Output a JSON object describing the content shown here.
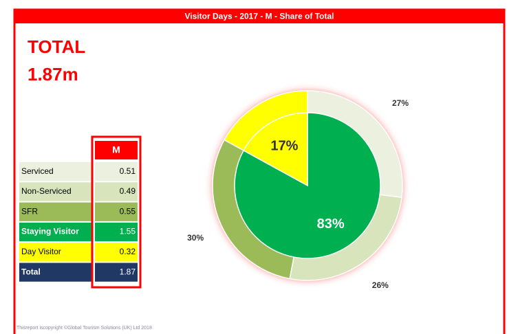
{
  "chart_data": {
    "type": "donut",
    "title": "Visitor Days - 2017 - M - Share of Total",
    "total_heading": "TOTAL",
    "total_value": "1.87m",
    "table": {
      "header": "M",
      "rows": [
        {
          "label": "Serviced",
          "value": 0.51,
          "color": "#ebf1de"
        },
        {
          "label": "Non-Serviced",
          "value": 0.49,
          "color": "#d8e4bc"
        },
        {
          "label": "SFR",
          "value": 0.55,
          "color": "#9bbb59"
        },
        {
          "label": "Staying Visitor",
          "value": 1.55,
          "color": "#00b050"
        },
        {
          "label": "Day Visitor",
          "value": 0.32,
          "color": "#ffff00"
        },
        {
          "label": "Total",
          "value": 1.87,
          "color": "#1f3864"
        }
      ]
    },
    "rings": [
      {
        "values": [
          27,
          26,
          30,
          17
        ],
        "value_labels": [
          "27%",
          "26%",
          "30%",
          null
        ],
        "colors": [
          "#ebf1de",
          "#d8e4bc",
          "#9bbb59",
          "#ffff00"
        ]
      },
      {
        "values": [
          83,
          17
        ],
        "value_labels": [
          "83%",
          "17%"
        ],
        "colors": [
          "#00b050",
          "#ffff00"
        ]
      }
    ],
    "footer": "Thisreport iscopyright ©Global Tourism Solutions (UK) Ltd 2018"
  }
}
